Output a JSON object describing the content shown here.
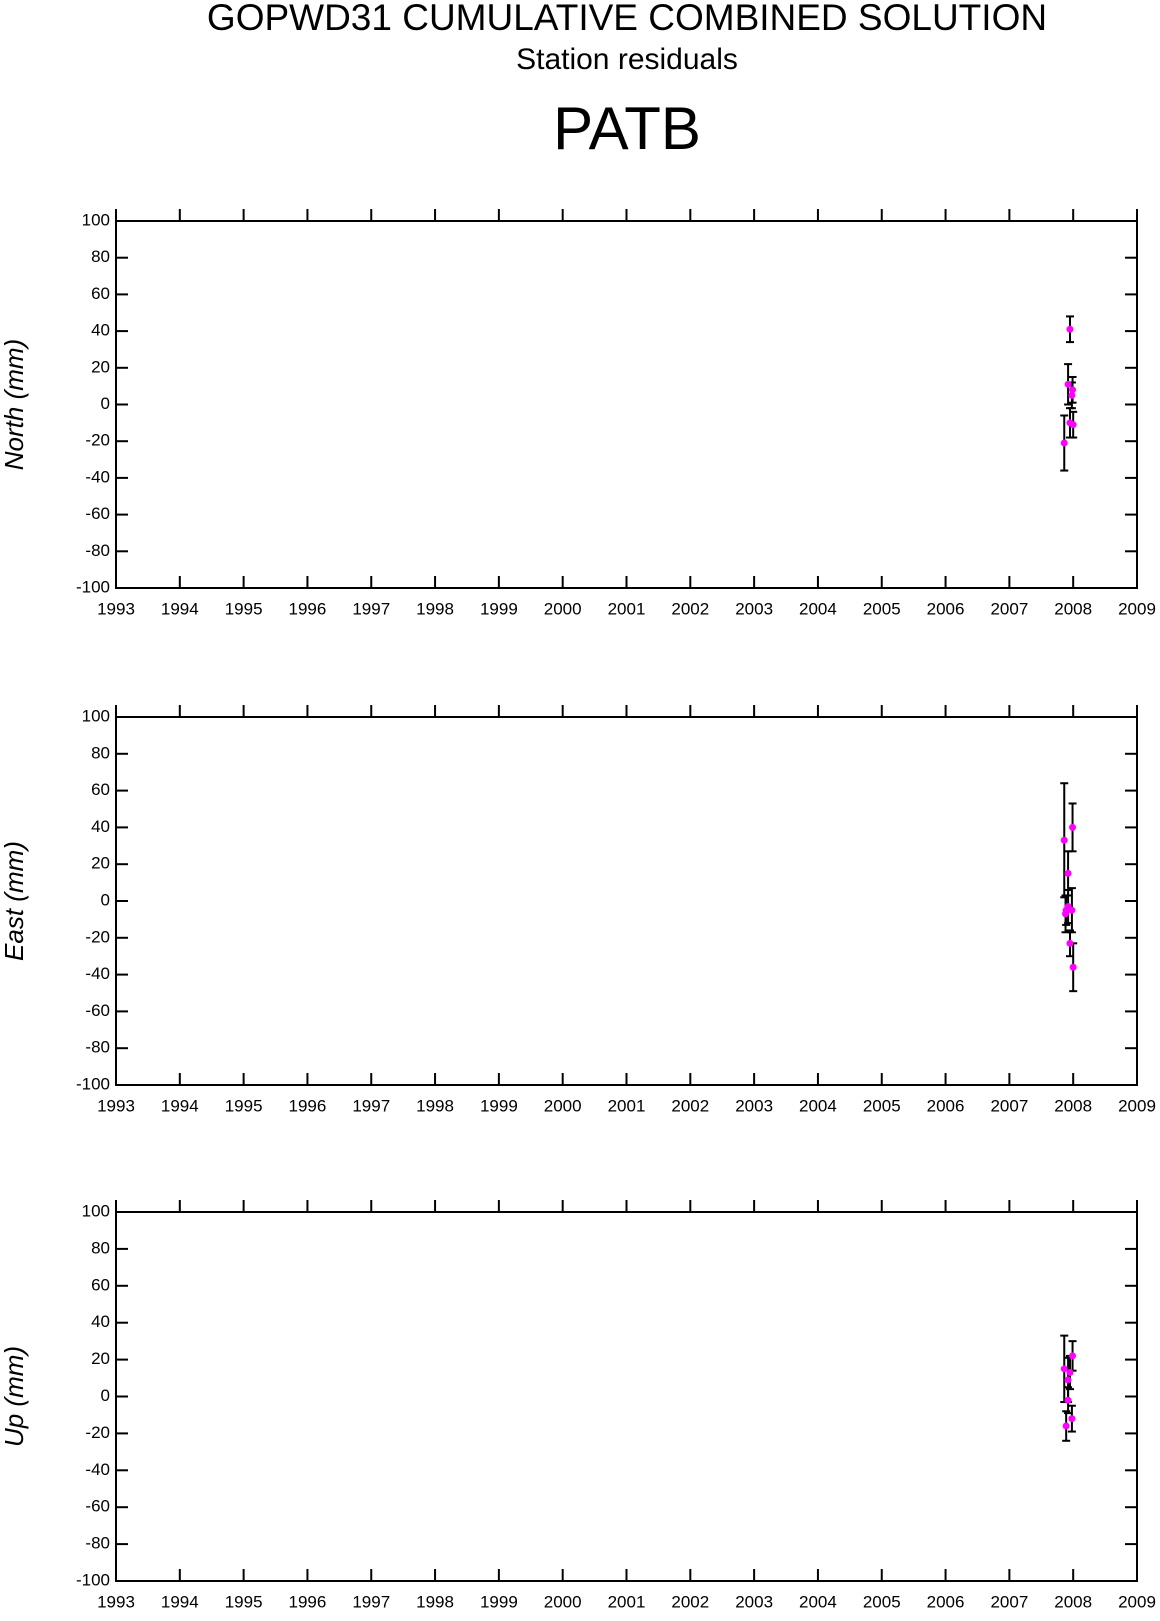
{
  "title": "GOPWD31 CUMULATIVE COMBINED SOLUTION",
  "subtitle": "Station residuals",
  "station": "PATB",
  "chart_data": [
    {
      "type": "scatter",
      "y_label": "North (mm)",
      "color": "#ff00ff",
      "error_color": "#000000",
      "x": [
        2007.86,
        2007.92,
        2007.95,
        2007.95,
        2007.98,
        2007.99,
        2008.0
      ],
      "values": [
        -21,
        11,
        41,
        -10,
        5,
        8,
        -11
      ],
      "errors": [
        15,
        11,
        7,
        8,
        7,
        7,
        7
      ],
      "xlim": [
        1993,
        2009
      ],
      "xticks": [
        1993,
        1994,
        1995,
        1996,
        1997,
        1998,
        1999,
        2000,
        2001,
        2002,
        2003,
        2004,
        2005,
        2006,
        2007,
        2008,
        2009
      ],
      "ylim": [
        -100,
        100
      ],
      "yticks": [
        -100,
        -80,
        -60,
        -40,
        -20,
        0,
        20,
        40,
        60,
        80,
        100
      ]
    },
    {
      "type": "scatter",
      "y_label": "East (mm)",
      "color": "#ff00ff",
      "error_color": "#000000",
      "x": [
        2007.86,
        2007.88,
        2007.89,
        2007.92,
        2007.92,
        2007.95,
        2007.98,
        2007.99,
        2008.0
      ],
      "values": [
        33,
        -7,
        -5,
        15,
        -3,
        -23,
        -5,
        40,
        -36
      ],
      "errors": [
        31,
        10,
        8,
        12,
        9,
        7,
        12,
        13,
        13
      ],
      "xlim": [
        1993,
        2009
      ],
      "xticks": [
        1993,
        1994,
        1995,
        1996,
        1997,
        1998,
        1999,
        2000,
        2001,
        2002,
        2003,
        2004,
        2005,
        2006,
        2007,
        2008,
        2009
      ],
      "ylim": [
        -100,
        100
      ],
      "yticks": [
        -100,
        -80,
        -60,
        -40,
        -20,
        0,
        20,
        40,
        60,
        80,
        100
      ]
    },
    {
      "type": "scatter",
      "y_label": "Up (mm)",
      "color": "#ff00ff",
      "error_color": "#000000",
      "x": [
        2007.86,
        2007.89,
        2007.92,
        2007.92,
        2007.95,
        2007.98,
        2007.99
      ],
      "values": [
        15,
        -16,
        9,
        -2,
        13,
        -12,
        22
      ],
      "errors": [
        18,
        8,
        12,
        7,
        9,
        7,
        8
      ],
      "xlim": [
        1993,
        2009
      ],
      "xticks": [
        1993,
        1994,
        1995,
        1996,
        1997,
        1998,
        1999,
        2000,
        2001,
        2002,
        2003,
        2004,
        2005,
        2006,
        2007,
        2008,
        2009
      ],
      "ylim": [
        -100,
        100
      ],
      "yticks": [
        -100,
        -80,
        -60,
        -40,
        -20,
        0,
        20,
        40,
        60,
        80,
        100
      ]
    }
  ]
}
